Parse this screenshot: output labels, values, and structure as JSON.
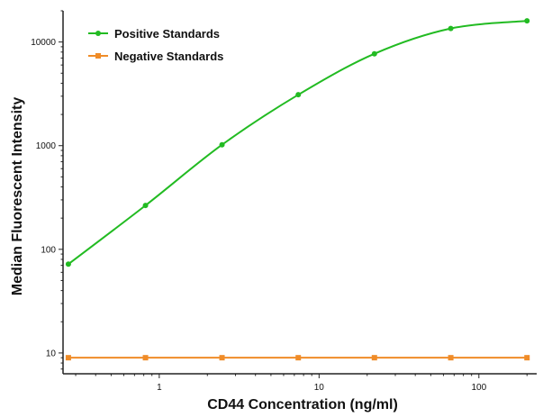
{
  "chart_data": {
    "type": "line",
    "xlabel": "CD44 Concentration (ng/ml)",
    "ylabel": "Median Fluorescent Intensity",
    "x_scale": "log",
    "y_scale": "log",
    "xlim": [
      0.25,
      230
    ],
    "ylim": [
      6.3,
      20000
    ],
    "x_ticks": [
      1,
      10,
      100
    ],
    "x_tick_labels": [
      "1",
      "10",
      "100"
    ],
    "y_ticks": [
      10,
      100,
      1000,
      10000
    ],
    "y_tick_labels": [
      "10",
      "100",
      "1000",
      "10000"
    ],
    "grid": false,
    "legend_position": "top-left",
    "series": [
      {
        "name": "Positive Standards",
        "color": "#22bb22",
        "marker": "circle",
        "x": [
          0.27,
          0.82,
          2.47,
          7.41,
          22.2,
          66.7,
          200
        ],
        "y": [
          72,
          265,
          1020,
          3100,
          7700,
          13500,
          16000
        ]
      },
      {
        "name": "Negative Standards",
        "color": "#f08c28",
        "marker": "square",
        "x": [
          0.27,
          0.82,
          2.47,
          7.41,
          22.2,
          66.7,
          200
        ],
        "y": [
          9,
          9,
          9,
          9,
          9,
          9,
          9
        ]
      }
    ]
  }
}
